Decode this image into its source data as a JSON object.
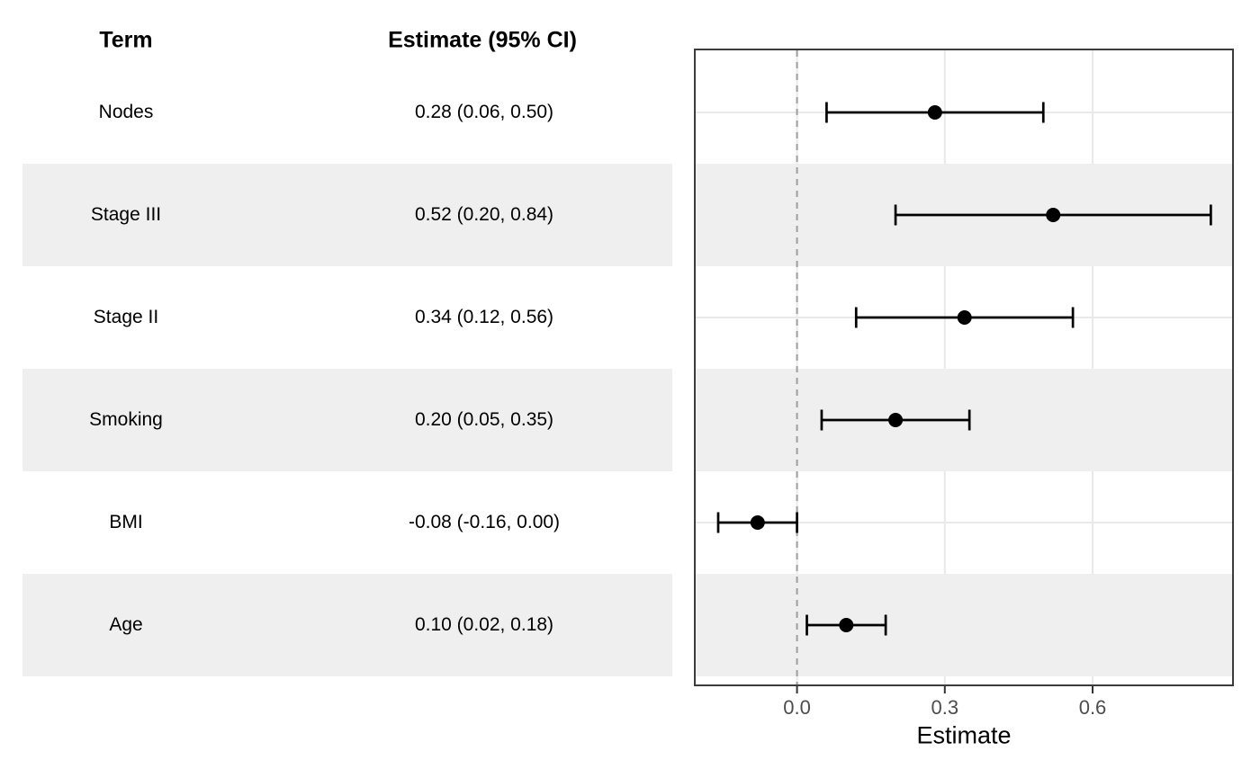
{
  "chart_data": {
    "type": "forest",
    "table_headers": {
      "term": "Term",
      "estimate": "Estimate (95% CI)"
    },
    "rows": [
      {
        "term": "Nodes",
        "estimate_label": "0.28 (0.06, 0.50)",
        "estimate": 0.28,
        "ci_low": 0.06,
        "ci_high": 0.5,
        "shaded": false
      },
      {
        "term": "Stage III",
        "estimate_label": "0.52 (0.20, 0.84)",
        "estimate": 0.52,
        "ci_low": 0.2,
        "ci_high": 0.84,
        "shaded": true
      },
      {
        "term": "Stage II",
        "estimate_label": "0.34 (0.12, 0.56)",
        "estimate": 0.34,
        "ci_low": 0.12,
        "ci_high": 0.56,
        "shaded": false
      },
      {
        "term": "Smoking",
        "estimate_label": "0.20 (0.05, 0.35)",
        "estimate": 0.2,
        "ci_low": 0.05,
        "ci_high": 0.35,
        "shaded": true
      },
      {
        "term": "BMI",
        "estimate_label": "-0.08 (-0.16, 0.00)",
        "estimate": -0.08,
        "ci_low": -0.16,
        "ci_high": 0.0,
        "shaded": false
      },
      {
        "term": "Age",
        "estimate_label": "0.10 (0.02, 0.18)",
        "estimate": 0.1,
        "ci_low": 0.02,
        "ci_high": 0.18,
        "shaded": true
      }
    ],
    "xlabel": "Estimate",
    "x_ticks": [
      {
        "value": 0.0,
        "label": "0.0"
      },
      {
        "value": 0.3,
        "label": "0.3"
      },
      {
        "value": 0.6,
        "label": "0.6"
      }
    ],
    "xlim": [
      -0.2075,
      0.885
    ],
    "reference_line": 0,
    "grid": true,
    "legend": "none",
    "colors": {
      "background": "#FFFFFF",
      "stripe": "#EFEFEF",
      "gridline": "#E9E9E9",
      "panel_border": "#3C3C3C",
      "reference_line": "#9E9E9E",
      "marker": "#000000",
      "error_bar": "#000000",
      "tick_mark": "#333333",
      "tick_label": "#4D4D4D",
      "text": "#000000"
    }
  }
}
